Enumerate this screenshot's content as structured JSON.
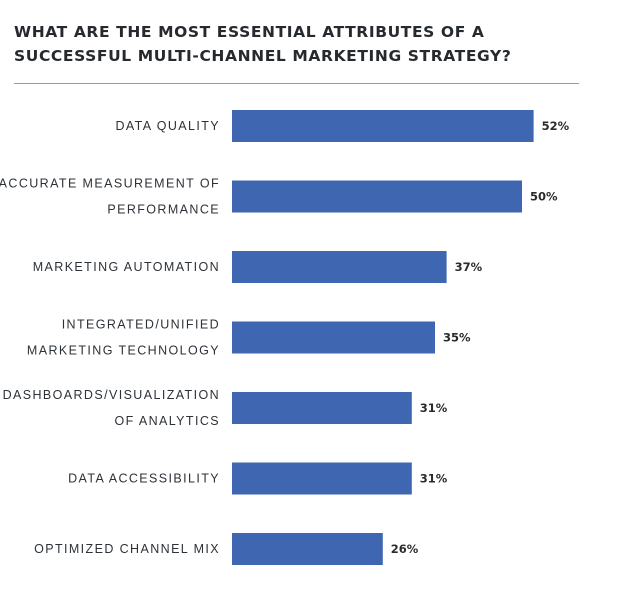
{
  "chart_data": {
    "type": "bar",
    "orientation": "horizontal",
    "title": "WHAT ARE THE MOST ESSENTIAL ATTRIBUTES OF A SUCCESSFUL MULTI-CHANNEL MARKETING STRATEGY?",
    "title_lines": [
      "WHAT ARE THE MOST ESSENTIAL ATTRIBUTES OF A",
      "SUCCESSFUL MULTI-CHANNEL MARKETING STRATEGY?"
    ],
    "categories": [
      "DATA QUALITY",
      "ACCURATE MEASUREMENT OF PERFORMANCE",
      "MARKETING AUTOMATION",
      "INTEGRATED/UNIFIED MARKETING TECHNOLOGY",
      "DASHBOARDS/VISUALIZATION OF ANALYTICS",
      "DATA ACCESSIBILITY",
      "OPTIMIZED CHANNEL MIX"
    ],
    "category_lines": [
      [
        "DATA QUALITY"
      ],
      [
        "ACCURATE MEASUREMENT OF",
        "PERFORMANCE"
      ],
      [
        "MARKETING AUTOMATION"
      ],
      [
        "INTEGRATED/UNIFIED",
        "MARKETING TECHNOLOGY"
      ],
      [
        "DASHBOARDS/VISUALIZATION",
        "OF ANALYTICS"
      ],
      [
        "DATA ACCESSIBILITY"
      ],
      [
        "OPTIMIZED CHANNEL MIX"
      ]
    ],
    "values": [
      52,
      50,
      37,
      35,
      31,
      31,
      26
    ],
    "value_labels": [
      "52%",
      "50%",
      "37%",
      "35%",
      "31%",
      "31%",
      "26%"
    ],
    "unit": "%",
    "xlim": [
      0,
      100
    ],
    "grid": false,
    "legend": "none",
    "colors": {
      "bar": "#3f67b1",
      "title": "#262a2e",
      "label": "#2d3238",
      "value_label": "#2b2b2b",
      "rule": "#9a9a9a"
    }
  }
}
